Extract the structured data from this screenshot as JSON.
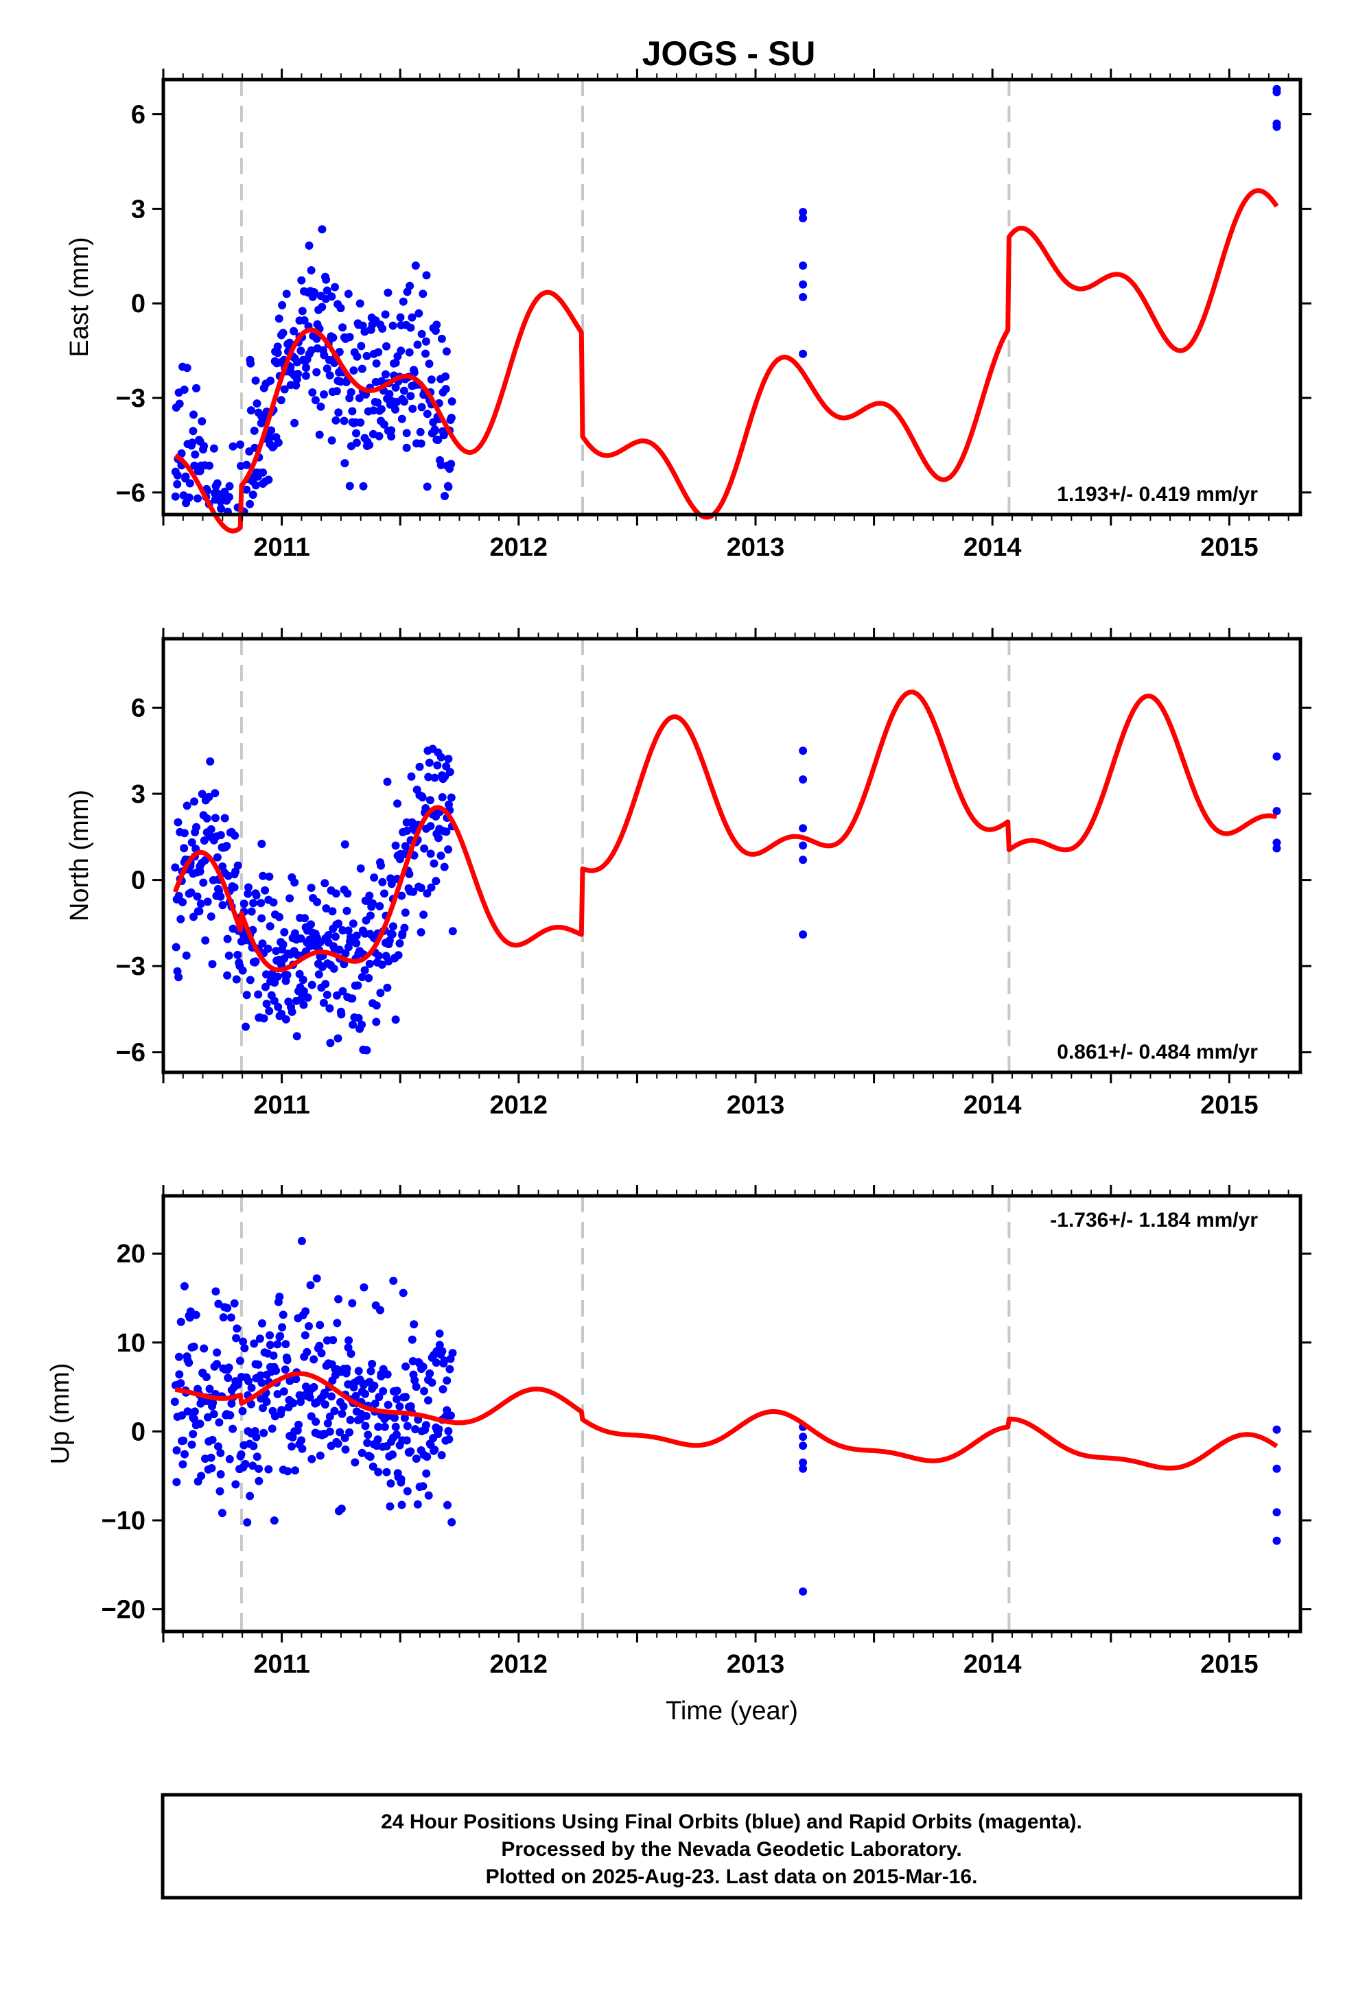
{
  "title": "JOGS - SU",
  "footer": {
    "lines": [
      "24 Hour Positions Using Final Orbits (blue) and Rapid Orbits (magenta).",
      "Processed by the Nevada Geodetic Laboratory.",
      "Plotted on 2025-Aug-23. Last data on 2015-Mar-16."
    ]
  },
  "colors": {
    "final_orbits": "#0000ff",
    "model": "#ff0000",
    "offsets": "#c8c8c8"
  },
  "chart_data": [
    {
      "type": "scatter",
      "panel": "east",
      "ylabel": "East (mm)",
      "xlabel": "",
      "xlim": [
        2010.5,
        2015.3
      ],
      "ylim": [
        -6.7,
        7.1
      ],
      "xticks": [
        2011,
        2012,
        2013,
        2014,
        2015
      ],
      "xtick_labels": [
        "2011",
        "2012",
        "2013",
        "2014",
        "2015"
      ],
      "yticks": [
        -6,
        -3,
        0,
        3,
        6
      ],
      "ytick_labels": [
        "−6",
        "−3",
        "0",
        "3",
        "6"
      ],
      "rate": "1.193+/- 0.419 mm/yr",
      "rate_position": "bottom-right",
      "offsets": [
        2010.83,
        2012.27,
        2014.07
      ],
      "model": {
        "trend": 1.193,
        "annual": [
          1.6,
          0.3
        ],
        "semiannual": [
          0.9,
          0.6
        ],
        "segments": [
          [
            2010.55,
            2010.83,
            -2.15
          ],
          [
            2010.83,
            2012.27,
            -0.85
          ],
          [
            2012.27,
            2014.07,
            -4.1
          ],
          [
            2014.07,
            2015.2,
            -1.2
          ]
        ]
      },
      "points": {
        "count": 430,
        "x_range": [
          2010.55,
          2011.72
        ],
        "spread": 1.4,
        "extra": [
          [
            2013.2,
            2.9
          ],
          [
            2013.2,
            2.7
          ],
          [
            2013.2,
            1.2
          ],
          [
            2013.2,
            0.6
          ],
          [
            2013.2,
            0.2
          ],
          [
            2013.2,
            -1.6
          ],
          [
            2015.2,
            6.8
          ],
          [
            2015.2,
            6.7
          ],
          [
            2015.2,
            5.7
          ],
          [
            2015.2,
            5.6
          ]
        ]
      }
    },
    {
      "type": "scatter",
      "panel": "north",
      "ylabel": "North (mm)",
      "xlabel": "",
      "xlim": [
        2010.5,
        2015.3
      ],
      "ylim": [
        -6.7,
        8.4
      ],
      "xticks": [
        2011,
        2012,
        2013,
        2014,
        2015
      ],
      "xtick_labels": [
        "2011",
        "2012",
        "2013",
        "2014",
        "2015"
      ],
      "yticks": [
        -6,
        -3,
        0,
        3,
        6
      ],
      "ytick_labels": [
        "−6",
        "−3",
        "0",
        "3",
        "6"
      ],
      "rate": "0.861+/- 0.484 mm/yr",
      "rate_position": "bottom-right",
      "offsets": [
        2010.83,
        2012.27,
        2014.07
      ],
      "model": {
        "trend": 0.861,
        "annual": [
          -1.9,
          -1.3
        ],
        "semiannual": [
          1.0,
          -0.4
        ],
        "segments": [
          [
            2010.55,
            2010.83,
            -0.4
          ],
          [
            2010.83,
            2012.27,
            0.3
          ],
          [
            2012.27,
            2014.07,
            2.6
          ],
          [
            2014.07,
            2015.2,
            1.6
          ]
        ]
      },
      "points": {
        "count": 430,
        "x_range": [
          2010.55,
          2011.72
        ],
        "spread": 1.5,
        "extra": [
          [
            2013.2,
            4.5
          ],
          [
            2013.2,
            3.5
          ],
          [
            2013.2,
            1.8
          ],
          [
            2013.2,
            1.2
          ],
          [
            2013.2,
            0.7
          ],
          [
            2013.2,
            -1.9
          ],
          [
            2015.2,
            4.3
          ],
          [
            2015.2,
            2.4
          ],
          [
            2015.2,
            1.3
          ],
          [
            2015.2,
            1.1
          ]
        ]
      }
    },
    {
      "type": "scatter",
      "panel": "up",
      "ylabel": "Up (mm)",
      "xlabel": "Time (year)",
      "xlim": [
        2010.5,
        2015.3
      ],
      "ylim": [
        -22.5,
        26.5
      ],
      "xticks": [
        2011,
        2012,
        2013,
        2014,
        2015
      ],
      "xtick_labels": [
        "2011",
        "2012",
        "2013",
        "2014",
        "2015"
      ],
      "yticks": [
        -20,
        -10,
        0,
        10,
        20
      ],
      "ytick_labels": [
        "−20",
        "−10",
        "0",
        "10",
        "20"
      ],
      "rate": "-1.736+/- 1.184 mm/yr",
      "rate_position": "top-right",
      "offsets": [
        2010.83,
        2012.27,
        2014.07
      ],
      "model": {
        "trend": -1.736,
        "annual": [
          1.2,
          1.5
        ],
        "semiannual": [
          0.6,
          0.5
        ],
        "segments": [
          [
            2010.55,
            2010.83,
            1.5
          ],
          [
            2010.83,
            2012.27,
            0.5
          ],
          [
            2012.27,
            2014.07,
            -0.3
          ],
          [
            2014.07,
            2015.2,
            0.6
          ]
        ]
      },
      "points": {
        "count": 430,
        "x_range": [
          2010.55,
          2011.72
        ],
        "spread": 5.5,
        "extra": [
          [
            2013.2,
            0.5
          ],
          [
            2013.2,
            -0.6
          ],
          [
            2013.2,
            -1.6
          ],
          [
            2013.2,
            -3.5
          ],
          [
            2013.2,
            -4.2
          ],
          [
            2013.2,
            -18.0
          ],
          [
            2015.2,
            0.2
          ],
          [
            2015.2,
            -4.2
          ],
          [
            2015.2,
            -9.1
          ],
          [
            2015.2,
            -12.3
          ]
        ]
      }
    }
  ]
}
